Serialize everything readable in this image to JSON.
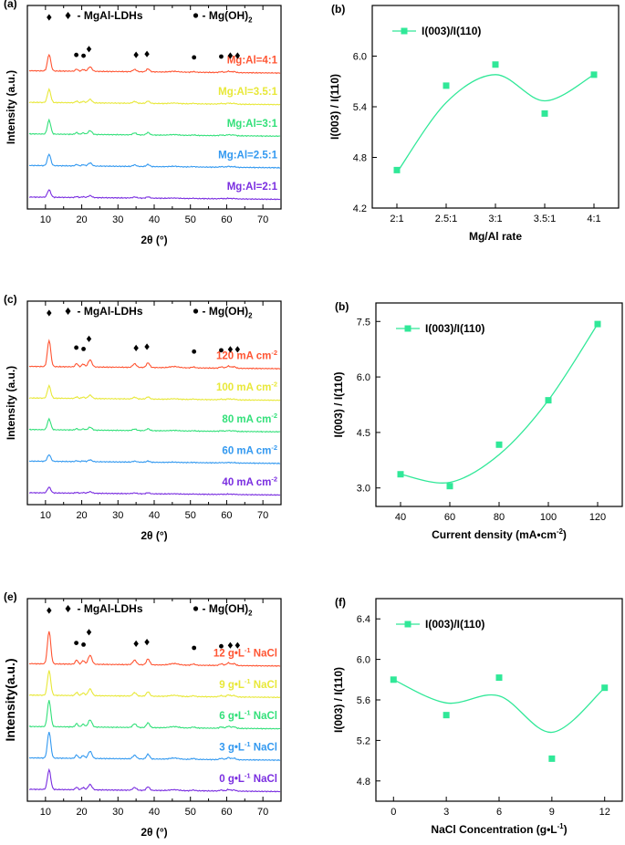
{
  "colors": {
    "red": "#ff5533",
    "yellow": "#e8e839",
    "green": "#33e07a",
    "blue": "#3399f0",
    "purple": "#7a2ee0",
    "mint": "#30e898",
    "axis": "#000000"
  },
  "chart_data": [
    {
      "type": "line",
      "panel": "(a)",
      "xlabel": "2θ (°)",
      "ylabel": "Intensity (a.u.)",
      "xlim": [
        5,
        75
      ],
      "xticks": [
        10,
        20,
        30,
        40,
        50,
        60,
        70
      ],
      "legend_ldh": "♦ - MgAl-LDHs",
      "legend_mgoh": "• - Mg(OH)",
      "legend_mgoh_sub": "2",
      "peak_markers_ldh": [
        11,
        22,
        35,
        38,
        61,
        63
      ],
      "peak_markers_mgoh": [
        18.5,
        20.5,
        51,
        58.5
      ],
      "series": [
        {
          "name": "Mg:Al=4:1",
          "color": "red",
          "peak_scale": 1.0
        },
        {
          "name": "Mg:Al=3.5:1",
          "color": "yellow",
          "peak_scale": 0.8
        },
        {
          "name": "Mg:Al=3:1",
          "color": "green",
          "peak_scale": 0.85
        },
        {
          "name": "Mg:Al=2.5:1",
          "color": "blue",
          "peak_scale": 0.7
        },
        {
          "name": "Mg:Al=2:1",
          "color": "purple",
          "peak_scale": 0.45
        }
      ]
    },
    {
      "type": "scatter",
      "panel": "(b)",
      "xlabel": "Mg/Al rate",
      "ylabel": "I(003) / I(110)",
      "categories": [
        "2:1",
        "2.5:1",
        "3:1",
        "3.5:1",
        "4:1"
      ],
      "ylim": [
        4.2,
        6.6
      ],
      "yticks": [
        4.2,
        4.8,
        5.4,
        6.0
      ],
      "series": [
        {
          "name": "I(003)/I(110)",
          "values": [
            4.65,
            5.65,
            5.9,
            5.32,
            5.78
          ]
        }
      ],
      "fit": [
        4.62,
        5.45,
        5.78,
        5.47,
        5.78
      ]
    },
    {
      "type": "line",
      "panel": "(c)",
      "xlabel": "2θ (°)",
      "ylabel": "Intensity (a.u.)",
      "xlim": [
        5,
        75
      ],
      "xticks": [
        10,
        20,
        30,
        40,
        50,
        60,
        70
      ],
      "legend_ldh": "♦ - MgAl-LDHs",
      "legend_mgoh": "• - Mg(OH)",
      "legend_mgoh_sub": "2",
      "peak_markers_ldh": [
        11,
        22,
        35,
        38,
        61,
        63
      ],
      "peak_markers_mgoh": [
        18.5,
        20.5,
        51,
        58.5
      ],
      "series": [
        {
          "name": "120 mA cm",
          "sup": "-2",
          "color": "red",
          "peak_scale": 1.6
        },
        {
          "name": "100 mA cm",
          "sup": "-2",
          "color": "yellow",
          "peak_scale": 0.75
        },
        {
          "name": "80 mA cm",
          "sup": "-2",
          "color": "green",
          "peak_scale": 0.65
        },
        {
          "name": "60 mA cm",
          "sup": "-2",
          "color": "blue",
          "peak_scale": 0.4
        },
        {
          "name": "40 mA cm",
          "sup": "-2",
          "color": "purple",
          "peak_scale": 0.35
        }
      ]
    },
    {
      "type": "scatter",
      "panel": "(b)",
      "xlabel": "Current density (mA•cm",
      "xlabel_sup": "-2",
      "xlabel_end": ")",
      "ylabel": "I(003) / I(110)",
      "x": [
        40,
        60,
        80,
        100,
        120
      ],
      "xlim": [
        30,
        130
      ],
      "xticks": [
        40,
        60,
        80,
        100,
        120
      ],
      "ylim": [
        2.5,
        8.0
      ],
      "yticks": [
        3.0,
        4.5,
        6.0,
        7.5
      ],
      "series": [
        {
          "name": "I(003)/I(110)",
          "values": [
            3.37,
            3.05,
            4.17,
            5.37,
            7.43
          ]
        }
      ],
      "fit": [
        3.37,
        3.15,
        3.9,
        5.37,
        7.43
      ]
    },
    {
      "type": "line",
      "panel": "(e)",
      "xlabel": "2θ (°)",
      "ylabel": "Intensity(a.u.)",
      "xlim": [
        5,
        75
      ],
      "xticks": [
        10,
        20,
        30,
        40,
        50,
        60,
        70
      ],
      "legend_ldh": "♦ - MgAl-LDHs",
      "legend_mgoh": "• - Mg(OH)",
      "legend_mgoh_sub": "2",
      "peak_markers_ldh": [
        11,
        22,
        35,
        38,
        61,
        63
      ],
      "peak_markers_mgoh": [
        18.5,
        20.5,
        51,
        58.5
      ],
      "series": [
        {
          "name": "12 g•L",
          "sup": "-1",
          "tail": " NaCl",
          "color": "red",
          "peak_scale": 2.0
        },
        {
          "name": "9 g•L",
          "sup": "-1",
          "tail": " NaCl",
          "color": "yellow",
          "peak_scale": 1.5
        },
        {
          "name": "6 g•L",
          "sup": "-1",
          "tail": " NaCl",
          "color": "green",
          "peak_scale": 1.6
        },
        {
          "name": "3 g•L",
          "sup": "-1",
          "tail": " NaCl",
          "color": "blue",
          "peak_scale": 1.6
        },
        {
          "name": "0 g•L",
          "sup": "-1",
          "tail": " NaCl",
          "color": "purple",
          "peak_scale": 1.2
        }
      ]
    },
    {
      "type": "scatter",
      "panel": "(f)",
      "xlabel": "NaCl Concentration (g•L",
      "xlabel_sup": "-1",
      "xlabel_end": ")",
      "ylabel": "I(003) / I(110)",
      "x": [
        0,
        3,
        6,
        9,
        12
      ],
      "xlim": [
        -1,
        13
      ],
      "xticks": [
        0,
        3,
        6,
        9,
        12
      ],
      "ylim": [
        4.6,
        6.6
      ],
      "yticks": [
        4.8,
        5.2,
        5.6,
        6.0,
        6.4
      ],
      "series": [
        {
          "name": "I(003)/I(110)",
          "values": [
            5.8,
            5.45,
            5.82,
            5.02,
            5.72
          ]
        }
      ],
      "fit": [
        5.8,
        5.57,
        5.64,
        5.28,
        5.72
      ]
    }
  ]
}
